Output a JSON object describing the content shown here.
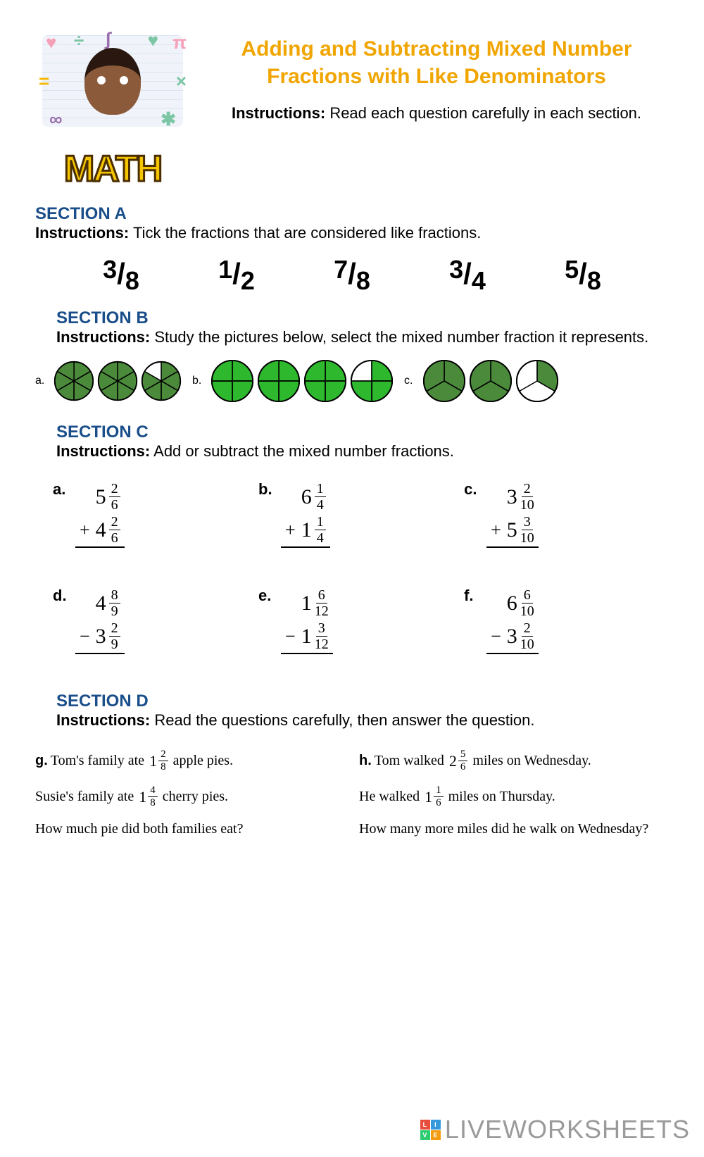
{
  "colors": {
    "title": "#f0a500",
    "section_heading": "#1a4e8a",
    "pie_fill": "#2db82d",
    "pie_fill_dark": "#4a8a3a",
    "pie_stroke": "#000000",
    "background": "#ffffff",
    "watermark": "#9a9a9a"
  },
  "logo": {
    "word": "MATH",
    "symbols": [
      "♥",
      "÷",
      "∫",
      "♥",
      "π",
      "=",
      "×",
      "∞",
      "✱"
    ]
  },
  "title": "Adding and Subtracting Mixed Number Fractions with Like Denominators",
  "main_instructions_label": "Instructions:",
  "main_instructions_text": "Read each question carefully in each section.",
  "section_a": {
    "heading": "SECTION A",
    "instr_label": "Instructions:",
    "instr_text": "Tick the fractions that are considered like fractions.",
    "fractions": [
      {
        "num": "3",
        "den": "8"
      },
      {
        "num": "1",
        "den": "2"
      },
      {
        "num": "7",
        "den": "8"
      },
      {
        "num": "3",
        "den": "4"
      },
      {
        "num": "5",
        "den": "8"
      }
    ]
  },
  "section_b": {
    "heading": "SECTION B",
    "instr_label": "Instructions:",
    "instr_text": "Study the pictures below, select the mixed number fraction it represents.",
    "items": [
      {
        "label": "a.",
        "slices": 6,
        "circles": [
          6,
          6,
          5
        ],
        "fill": "#4a8a3a",
        "size": 58
      },
      {
        "label": "b.",
        "slices": 4,
        "circles": [
          4,
          4,
          4,
          3
        ],
        "fill": "#2db82d",
        "size": 62
      },
      {
        "label": "c.",
        "slices": 3,
        "circles": [
          3,
          3,
          1
        ],
        "fill": "#4a8a3a",
        "size": 62
      }
    ]
  },
  "section_c": {
    "heading": "SECTION C",
    "instr_label": "Instructions:",
    "instr_text": "Add or subtract the mixed number fractions.",
    "problems": [
      {
        "label": "a.",
        "op": "+",
        "top": {
          "w": "5",
          "n": "2",
          "d": "6"
        },
        "bot": {
          "w": "4",
          "n": "2",
          "d": "6"
        }
      },
      {
        "label": "b.",
        "op": "+",
        "top": {
          "w": "6",
          "n": "1",
          "d": "4"
        },
        "bot": {
          "w": "1",
          "n": "1",
          "d": "4"
        }
      },
      {
        "label": "c.",
        "op": "+",
        "top": {
          "w": "3",
          "n": "2",
          "d": "10"
        },
        "bot": {
          "w": "5",
          "n": "3",
          "d": "10"
        }
      },
      {
        "label": "d.",
        "op": "−",
        "top": {
          "w": "4",
          "n": "8",
          "d": "9"
        },
        "bot": {
          "w": "3",
          "n": "2",
          "d": "9"
        }
      },
      {
        "label": "e.",
        "op": "−",
        "top": {
          "w": "1",
          "n": "6",
          "d": "12"
        },
        "bot": {
          "w": "1",
          "n": "3",
          "d": "12"
        }
      },
      {
        "label": "f.",
        "op": "−",
        "top": {
          "w": "6",
          "n": "6",
          "d": "10"
        },
        "bot": {
          "w": "3",
          "n": "2",
          "d": "10"
        }
      }
    ]
  },
  "section_d": {
    "heading": "SECTION D",
    "instr_label": "Instructions:",
    "instr_text": "Read the questions carefully, then answer the question.",
    "problems": [
      {
        "label": "g.",
        "lines": [
          {
            "pre": "Tom's family ate",
            "mixed": {
              "w": "1",
              "n": "2",
              "d": "8"
            },
            "post": "apple pies."
          },
          {
            "pre": "Susie's family ate",
            "mixed": {
              "w": "1",
              "n": "4",
              "d": "8"
            },
            "post": "cherry pies."
          },
          {
            "pre": "How much pie did both families eat?",
            "mixed": null,
            "post": ""
          }
        ]
      },
      {
        "label": "h.",
        "lines": [
          {
            "pre": "Tom walked",
            "mixed": {
              "w": "2",
              "n": "5",
              "d": "6"
            },
            "post": "miles on Wednesday."
          },
          {
            "pre": "He walked",
            "mixed": {
              "w": "1",
              "n": "1",
              "d": "6"
            },
            "post": "miles on Thursday."
          },
          {
            "pre": "How many more miles did he walk on Wednesday?",
            "mixed": null,
            "post": ""
          }
        ]
      }
    ]
  },
  "watermark": {
    "badge": [
      "L",
      "I",
      "V",
      "E"
    ],
    "text": "LIVEWORKSHEETS"
  }
}
